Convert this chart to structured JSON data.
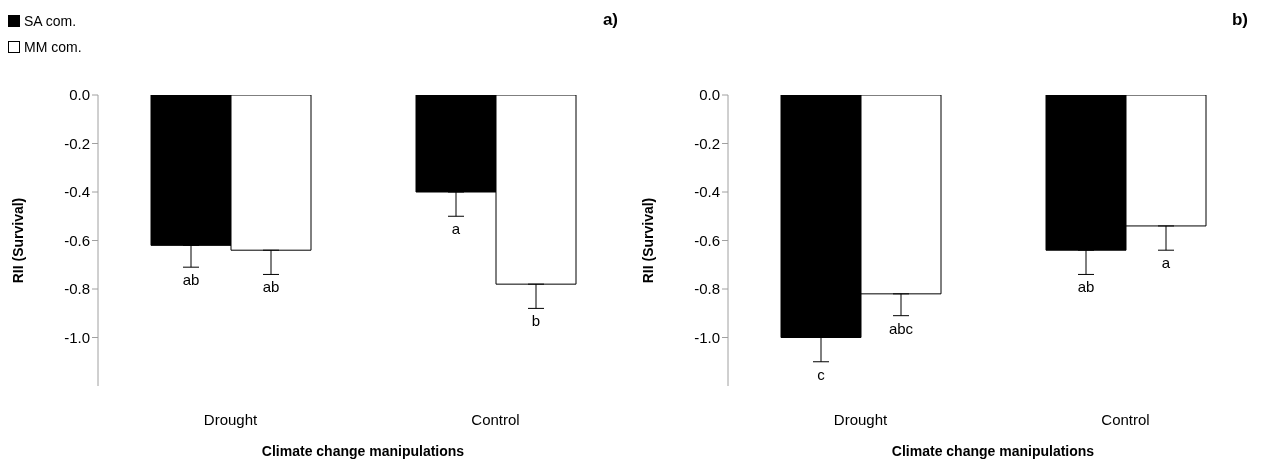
{
  "chart_data": [
    {
      "type": "bar",
      "title": "a)",
      "xlabel": "Climate change manipulations",
      "ylabel": "RII (Survival)",
      "categories": [
        "Drought",
        "Control"
      ],
      "series": [
        {
          "name": "SA com.",
          "color": "#000000",
          "values": [
            -0.62,
            -0.4
          ],
          "errors": [
            [
              -0.71,
              -0.62
            ],
            [
              -0.5,
              -0.4
            ]
          ],
          "value_labels": [
            "ab",
            "a"
          ]
        },
        {
          "name": "MM com.",
          "color": "#ffffff",
          "values": [
            -0.64,
            -0.78
          ],
          "errors": [
            [
              -0.74,
              -0.64
            ],
            [
              -0.88,
              -0.78
            ]
          ],
          "value_labels": [
            "ab",
            "b"
          ]
        }
      ],
      "ylim": [
        -1.2,
        0
      ],
      "yticks": [
        {
          "value": 0,
          "label": "0.0"
        },
        {
          "value": -0.2,
          "label": "-0.2"
        },
        {
          "value": -0.4,
          "label": "-0.4"
        },
        {
          "value": -0.6,
          "label": "-0.6"
        },
        {
          "value": -0.8,
          "label": "-0.8"
        },
        {
          "value": -1,
          "label": "-1.0"
        }
      ],
      "grid": false,
      "legend": "top left"
    },
    {
      "type": "bar",
      "title": "b)",
      "xlabel": "Climate change manipulations",
      "ylabel": "RII (Survival)",
      "categories": [
        "Drought",
        "Control"
      ],
      "series": [
        {
          "color": "#000000",
          "values": [
            -1.0,
            -0.64
          ],
          "errors": [
            [
              -1.1,
              -1.0
            ],
            [
              -0.74,
              -0.64
            ]
          ],
          "value_labels": [
            "c",
            "ab"
          ]
        },
        {
          "color": "#ffffff",
          "values": [
            -0.82,
            -0.54
          ],
          "errors": [
            [
              -0.91,
              -0.82
            ],
            [
              -0.64,
              -0.54
            ]
          ],
          "value_labels": [
            "abc",
            "a"
          ]
        }
      ],
      "ylim": [
        -1.2,
        0
      ],
      "yticks": [
        {
          "value": 0,
          "label": "0.0"
        },
        {
          "value": -0.2,
          "label": "-0.2"
        },
        {
          "value": -0.4,
          "label": "-0.4"
        },
        {
          "value": -0.6,
          "label": "-0.6"
        },
        {
          "value": -0.8,
          "label": "-0.8"
        },
        {
          "value": -1,
          "label": "-1.0"
        }
      ],
      "grid": false
    }
  ]
}
